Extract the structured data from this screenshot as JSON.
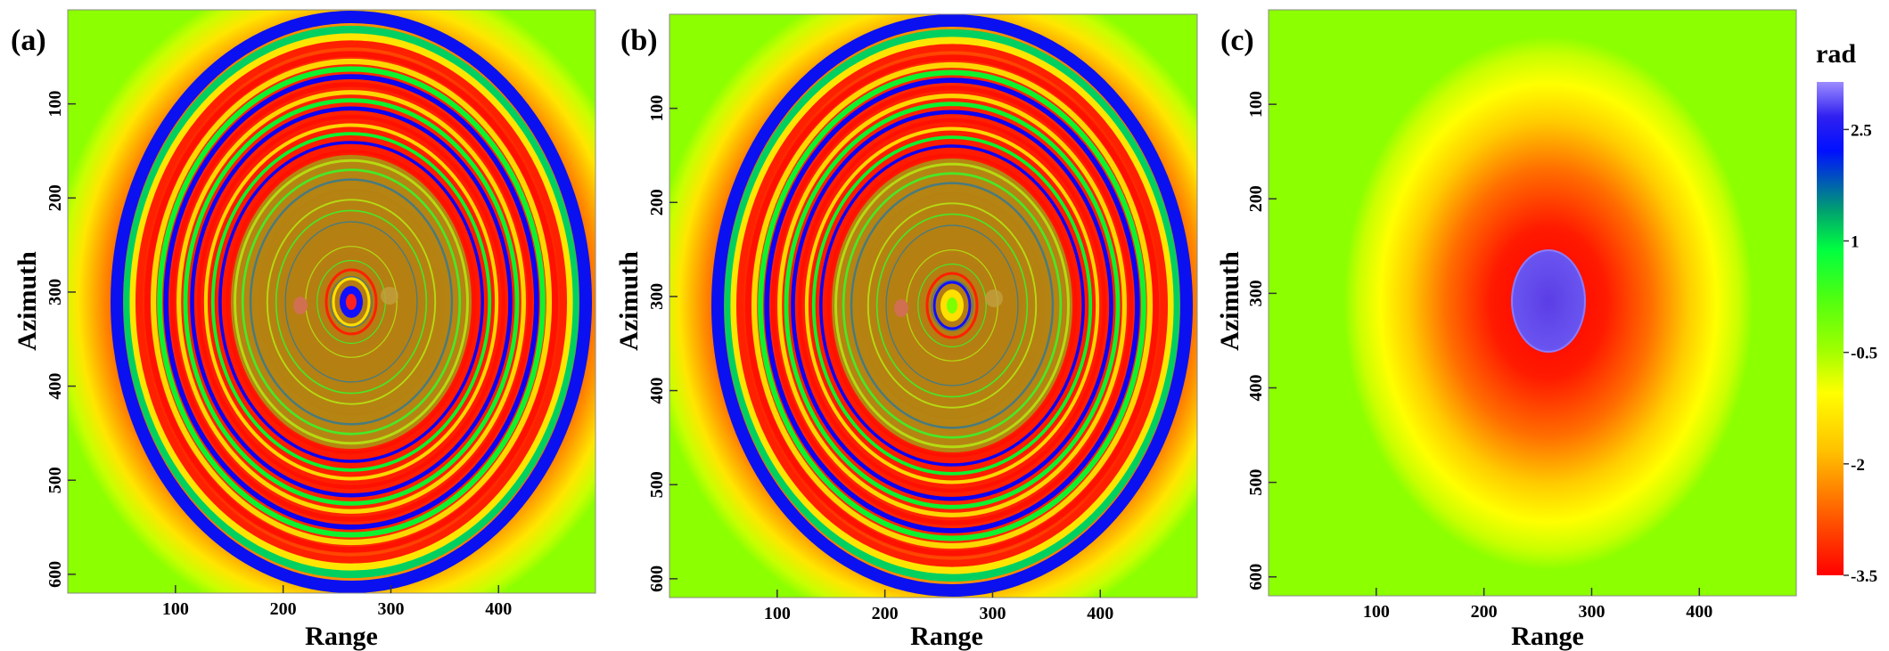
{
  "figure": {
    "colorbar_title": "rad"
  },
  "chart_data": [
    {
      "type": "heatmap",
      "panel_label": "(a)",
      "description": "wrapped interferometric phase, dense elliptical fringes",
      "xlabel": "Range",
      "ylabel": "Azimuth",
      "xlim": [
        0,
        490
      ],
      "ylim": [
        620,
        0
      ],
      "xticks": [
        100,
        200,
        300,
        400
      ],
      "yticks": [
        100,
        200,
        300,
        400,
        500,
        600
      ],
      "center": [
        259,
        308
      ],
      "fringe_count": 24,
      "value_range": [
        -3.5,
        3.14
      ]
    },
    {
      "type": "heatmap",
      "panel_label": "(b)",
      "description": "simulated wrapped phase, dense elliptical fringes",
      "xlabel": "Range",
      "ylabel": "Azimuth",
      "xlim": [
        0,
        490
      ],
      "ylim": [
        620,
        0
      ],
      "xticks": [
        100,
        200,
        300,
        400
      ],
      "yticks": [
        100,
        200,
        300,
        400,
        500,
        600
      ],
      "center": [
        259,
        308
      ],
      "fringe_count": 24,
      "value_range": [
        -3.5,
        3.14
      ]
    },
    {
      "type": "heatmap",
      "panel_label": "(c)",
      "description": "phase difference, smooth depression centred on source",
      "xlabel": "Range",
      "ylabel": "Azimuth",
      "xlim": [
        0,
        490
      ],
      "ylim": [
        620,
        0
      ],
      "xticks": [
        100,
        200,
        300,
        400
      ],
      "yticks": [
        100,
        200,
        300,
        400,
        500,
        600
      ],
      "center": [
        259,
        308
      ],
      "value_range": [
        -3.5,
        3.14
      ]
    }
  ],
  "colorbar": {
    "ticks": [
      {
        "value": 2.5,
        "label": "2.5"
      },
      {
        "value": 1,
        "label": "1"
      },
      {
        "value": -0.5,
        "label": "-0.5"
      },
      {
        "value": -2,
        "label": "-2"
      },
      {
        "value": -3.5,
        "label": "-3.5"
      }
    ],
    "range": [
      -3.5,
      3.14
    ],
    "colors": [
      "#ff0000",
      "#ff6a00",
      "#ffd400",
      "#ffff00",
      "#9cff00",
      "#7cff00",
      "#00ff2a",
      "#00a070",
      "#0010ff",
      "#4030e8",
      "#9c8cff"
    ]
  }
}
